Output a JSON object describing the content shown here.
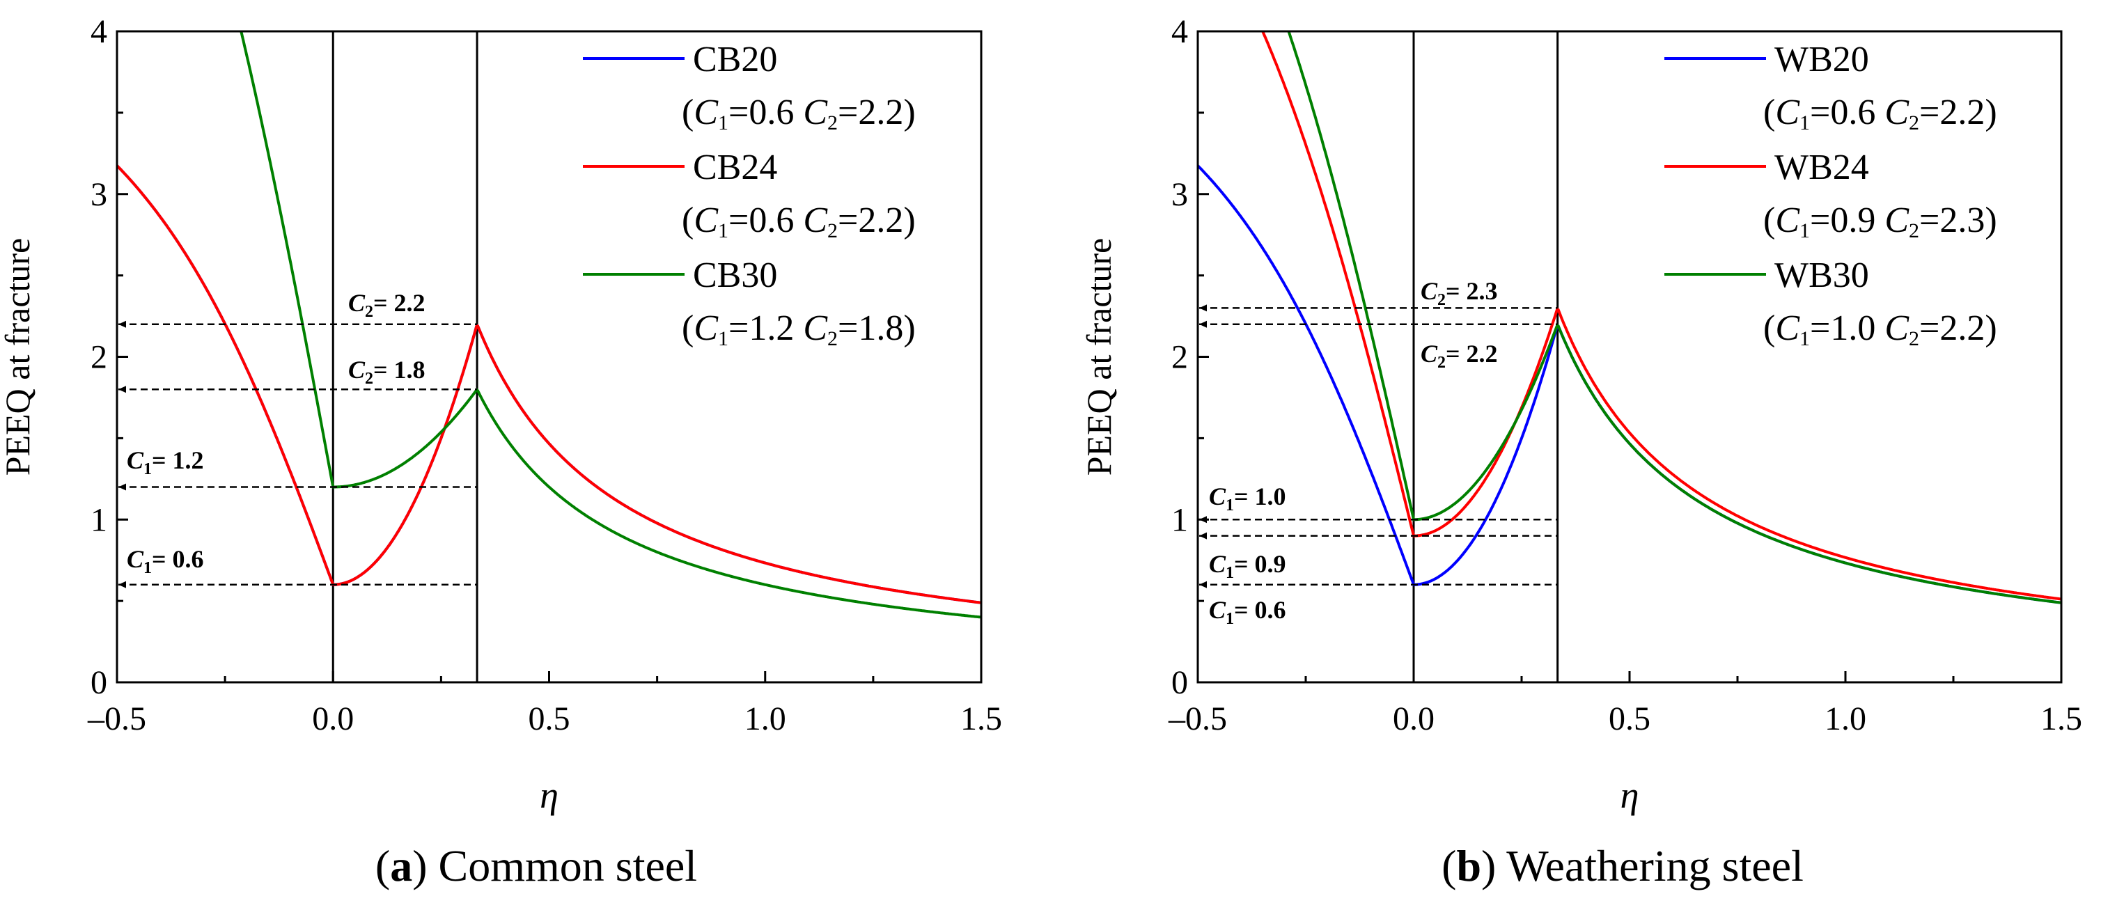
{
  "chart_data": [
    {
      "type": "line",
      "caption": {
        "letter": "a",
        "text": " Common steel"
      },
      "xlabel": "η",
      "ylabel": "PEEQ at fracture",
      "xlim": [
        -0.5,
        1.5
      ],
      "ylim": [
        0,
        4
      ],
      "xticks": [
        -0.5,
        0.0,
        0.5,
        1.0,
        1.5
      ],
      "xtick_labels": [
        "–0.5",
        "0.0",
        "0.5",
        "1.0",
        "1.5"
      ],
      "yticks": [
        0,
        1,
        2,
        3,
        4
      ],
      "ytick_labels": [
        "0",
        "1",
        "2",
        "3",
        "4"
      ],
      "vlines": [
        0,
        0.3333
      ],
      "legend_position": "top-right",
      "series": [
        {
          "name": "CB20",
          "params": {
            "c1": "0.6",
            "c2": "2.2"
          },
          "c1": 0.6,
          "c2": 2.2,
          "color": "#0000ff"
        },
        {
          "name": "CB24",
          "params": {
            "c1": "0.6",
            "c2": "2.2"
          },
          "c1": 0.6,
          "c2": 2.2,
          "color": "#ff0000"
        },
        {
          "name": "CB30",
          "params": {
            "c1": "1.2",
            "c2": "1.8"
          },
          "c1": 1.2,
          "c2": 1.8,
          "color": "#008000"
        }
      ],
      "annotations": [
        {
          "sym": "C",
          "sub": "2",
          "value": "2.2",
          "y": 2.2
        },
        {
          "sym": "C",
          "sub": "2",
          "value": "1.8",
          "y": 1.8
        },
        {
          "sym": "C",
          "sub": "1",
          "value": "1.2",
          "y": 1.2
        },
        {
          "sym": "C",
          "sub": "1",
          "value": "0.6",
          "y": 0.6
        }
      ]
    },
    {
      "type": "line",
      "caption": {
        "letter": "b",
        "text": " Weathering steel"
      },
      "xlabel": "η",
      "ylabel": "PEEQ at fracture",
      "xlim": [
        -0.5,
        1.5
      ],
      "ylim": [
        0,
        4
      ],
      "xticks": [
        -0.5,
        0.0,
        0.5,
        1.0,
        1.5
      ],
      "xtick_labels": [
        "–0.5",
        "0.0",
        "0.5",
        "1.0",
        "1.5"
      ],
      "yticks": [
        0,
        1,
        2,
        3,
        4
      ],
      "ytick_labels": [
        "0",
        "1",
        "2",
        "3",
        "4"
      ],
      "vlines": [
        0,
        0.3333
      ],
      "legend_position": "top-right",
      "series": [
        {
          "name": "WB20",
          "params": {
            "c1": "0.6",
            "c2": "2.2"
          },
          "c1": 0.6,
          "c2": 2.2,
          "color": "#0000ff"
        },
        {
          "name": "WB24",
          "params": {
            "c1": "0.9",
            "c2": "2.3"
          },
          "c1": 0.9,
          "c2": 2.3,
          "color": "#ff0000"
        },
        {
          "name": "WB30",
          "params": {
            "c1": "1.0",
            "c2": "2.2"
          },
          "c1": 1.0,
          "c2": 2.2,
          "color": "#008000"
        }
      ],
      "annotations": [
        {
          "sym": "C",
          "sub": "2",
          "value": "2.3",
          "y": 2.3
        },
        {
          "sym": "C",
          "sub": "2",
          "value": "2.2",
          "y": 2.2
        },
        {
          "sym": "C",
          "sub": "1",
          "value": "1.0",
          "y": 1.0
        },
        {
          "sym": "C",
          "sub": "1",
          "value": "0.9",
          "y": 0.9
        },
        {
          "sym": "C",
          "sub": "1",
          "value": "0.6",
          "y": 0.6
        }
      ]
    }
  ]
}
